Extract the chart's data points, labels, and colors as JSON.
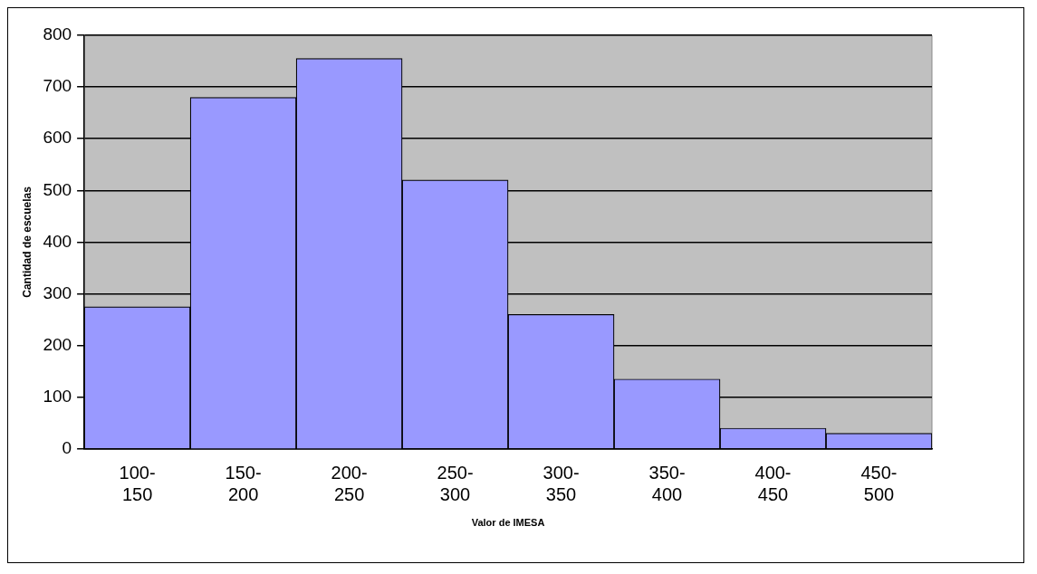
{
  "chart_data": {
    "type": "bar",
    "xlabel": "Valor de IMESA",
    "ylabel": "Cantidad de escuelas",
    "categories": [
      "100-150",
      "150-200",
      "200-250",
      "250-300",
      "300-350",
      "350-400",
      "400-450",
      "450-500"
    ],
    "values": [
      275,
      680,
      755,
      520,
      260,
      135,
      40,
      30
    ],
    "color": "#9999ff",
    "ylim": [
      0,
      800
    ],
    "yticks": [
      0,
      100,
      200,
      300,
      400,
      500,
      600,
      700,
      800
    ],
    "grid": "y",
    "legend": false
  }
}
